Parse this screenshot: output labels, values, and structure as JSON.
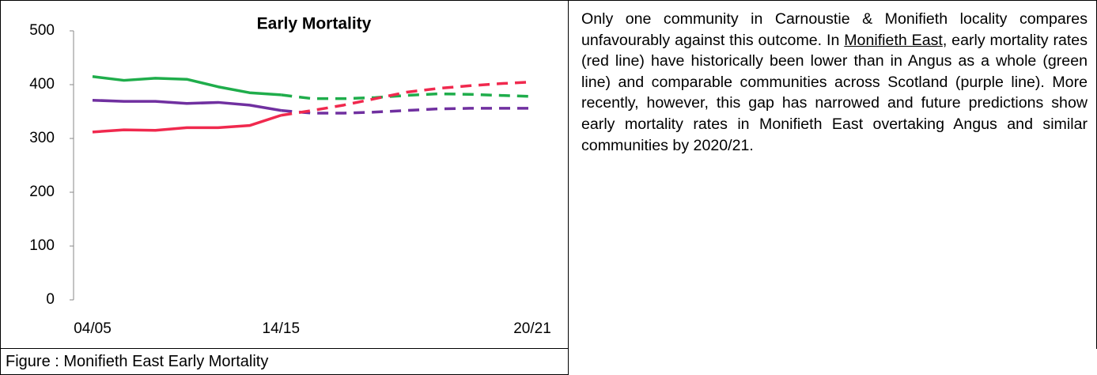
{
  "chart_data": {
    "type": "line",
    "title": "Early Mortality",
    "categories": [
      "04/05",
      null,
      null,
      null,
      null,
      null,
      "14/15",
      null,
      null,
      null,
      null,
      null,
      null,
      null,
      "20/21"
    ],
    "series": [
      {
        "color": "#1fad4b",
        "style": "solid",
        "values": [
          415,
          408,
          412,
          410,
          396,
          385,
          381,
          null,
          null,
          null,
          null,
          null,
          null,
          null,
          null
        ]
      },
      {
        "color": "#7030a0",
        "style": "solid",
        "values": [
          371,
          369,
          369,
          365,
          367,
          362,
          352,
          null,
          null,
          null,
          null,
          null,
          null,
          null,
          null
        ]
      },
      {
        "color": "#f0294e",
        "style": "solid",
        "values": [
          312,
          316,
          315,
          320,
          320,
          324,
          343,
          null,
          null,
          null,
          null,
          null,
          null,
          null,
          null
        ]
      },
      {
        "color": "#1fad4b",
        "style": "dashed",
        "values": [
          null,
          null,
          null,
          null,
          null,
          null,
          381,
          374,
          374,
          376,
          380,
          383,
          382,
          380,
          378
        ]
      },
      {
        "color": "#7030a0",
        "style": "dashed",
        "values": [
          null,
          null,
          null,
          null,
          null,
          null,
          352,
          347,
          347,
          349,
          352,
          355,
          356,
          356,
          356
        ]
      },
      {
        "color": "#f0294e",
        "style": "dashed",
        "values": [
          null,
          null,
          null,
          null,
          null,
          null,
          343,
          352,
          362,
          374,
          386,
          393,
          398,
          402,
          405
        ]
      }
    ],
    "ylim": [
      0,
      500
    ],
    "yticks": [
      0,
      100,
      200,
      300,
      400,
      500
    ],
    "grid": false
  },
  "caption": "Figure : Monifieth East Early Mortality",
  "paragraph": [
    "Only one community in Carnoustie & Monifieth locality compares unfavourably against this outcome. In ",
    "Monifieth East",
    ", early mortality rates (red line) have historically been lower than in Angus as a whole (green line) and comparable communities across Scotland (purple line). More recently, however, this gap has narrowed and future predictions show early mortality rates in Monifieth East overtaking Angus and similar communities by 2020/21."
  ]
}
